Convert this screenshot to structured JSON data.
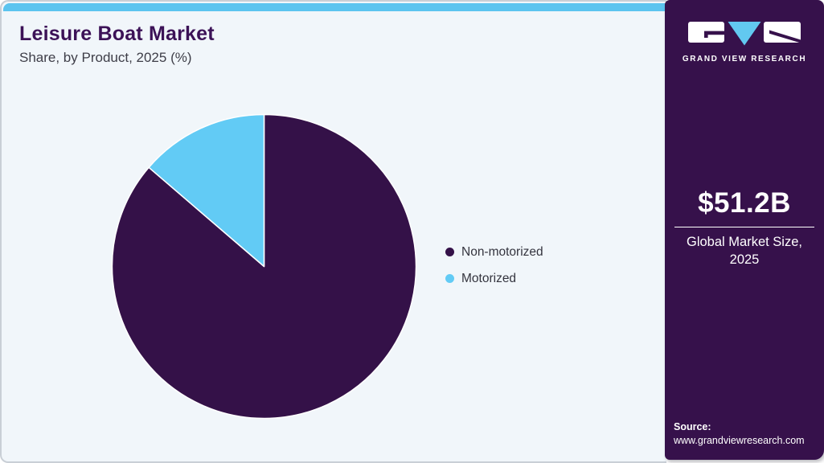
{
  "header": {
    "title": "Leisure Boat Market",
    "subtitle": "Share, by Product, 2025 (%)"
  },
  "brand": {
    "name": "GRAND VIEW RESEARCH"
  },
  "sidebar": {
    "market_size": "$51.2B",
    "market_caption_line1": "Global Market Size,",
    "market_caption_line2": "2025",
    "source_label": "Source:",
    "source_url": "www.grandviewresearch.com"
  },
  "chart_data": {
    "type": "pie",
    "title": "Leisure Boat Market Share, by Product, 2025 (%)",
    "start_angle_deg": 0,
    "direction": "clockwise",
    "legend_position": "right",
    "slice_stroke": "#FFFFFF",
    "segments": [
      {
        "label": "Non-motorized",
        "value": 86.3,
        "color": "#341148"
      },
      {
        "label": "Motorized",
        "value": 13.7,
        "color": "#62CBF5"
      }
    ]
  },
  "colors": {
    "topbar_blue": "#5CC4EF",
    "main_background": "#F1F6FA",
    "card_border": "#C9CFD6",
    "sidebar_purple": "#36114B",
    "accent_blue": "#62CBF5",
    "title_purple": "#3C1257",
    "body_text": "#3E3E48"
  }
}
